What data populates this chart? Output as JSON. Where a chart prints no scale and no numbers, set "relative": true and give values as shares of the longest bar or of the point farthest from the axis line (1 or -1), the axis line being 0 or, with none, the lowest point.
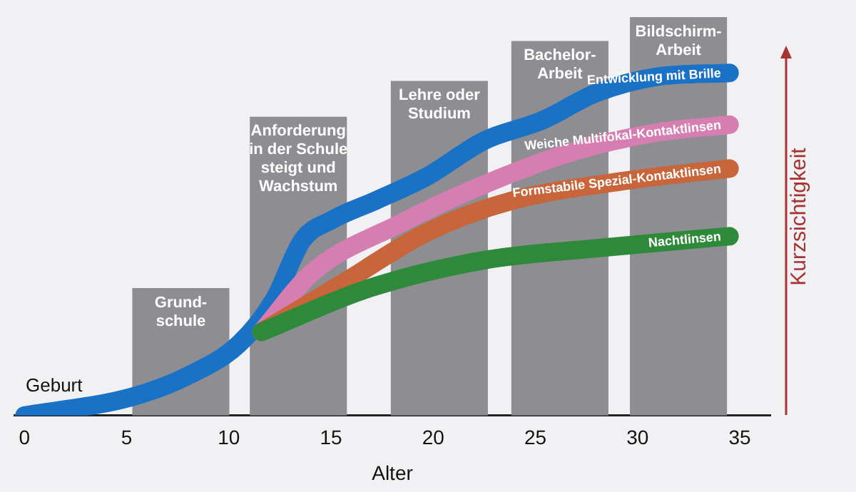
{
  "chart_data": {
    "type": "line",
    "relative": true,
    "xlabel": "Alter",
    "ylabel": "Kurzsichtigkeit",
    "xlim": [
      -0.5,
      36.5
    ],
    "xticks": [
      0,
      5,
      10,
      15,
      20,
      25,
      30,
      35
    ],
    "grid": false,
    "legend": false,
    "marker": "none",
    "series": [
      {
        "type": "bar",
        "color": "#8e8e92",
        "x": [
          7.65,
          13.4,
          20.3,
          26.2,
          32.0
        ],
        "values": [
          0.32,
          0.75,
          0.84,
          0.94,
          1
        ]
      },
      {
        "name": "Nachtlinsen",
        "color": "#2e8a3a",
        "x": [
          11.6,
          16.9,
          22.5,
          28.0,
          34.5
        ],
        "values": [
          0.21,
          0.32,
          0.39,
          0.42,
          0.45
        ]
      },
      {
        "name": "Formstabile Spezial-Kontaktlinsen",
        "color": "#c8653a",
        "x": [
          11.6,
          15.5,
          19.7,
          23.9,
          29.5,
          34.5
        ],
        "values": [
          0.21,
          0.33,
          0.46,
          0.54,
          0.59,
          0.62
        ]
      },
      {
        "name": "Weiche Multifokal-Kontaktlinsen",
        "color": "#d67eb2",
        "x": [
          11.6,
          14.1,
          18.3,
          22.5,
          26.7,
          30.9,
          34.5
        ],
        "values": [
          0.21,
          0.36,
          0.48,
          0.58,
          0.66,
          0.71,
          0.73
        ]
      },
      {
        "name": "Entwicklung mit Brille",
        "color": "#1a72c6",
        "x": [
          0,
          5.2,
          8.0,
          10.5,
          12.2,
          13.6,
          15.0,
          17.2,
          19.7,
          22.5,
          25.3,
          28.0,
          30.9,
          34.5
        ],
        "values": [
          0,
          0.046,
          0.1,
          0.18,
          0.29,
          0.44,
          0.49,
          0.54,
          0.6,
          0.69,
          0.74,
          0.81,
          0.85,
          0.86
        ]
      }
    ],
    "annotations": [
      "Geburt",
      {
        "text": "Grund-\nschule",
        "x": 7.65,
        "y": 0.31
      },
      {
        "text": "Anforderung\nin der Schule\nsteigt und\nWachstum",
        "x": 13.4,
        "y": 0.74
      },
      {
        "text": "Lehre oder\nStudium",
        "x": 20.3,
        "y": 0.83
      },
      {
        "text": "Bachelor-\nArbeit",
        "x": 26.2,
        "y": 0.93
      },
      {
        "text": "Bildschirm-\nArbeit",
        "x": 32.0,
        "y": 0.99
      }
    ]
  }
}
